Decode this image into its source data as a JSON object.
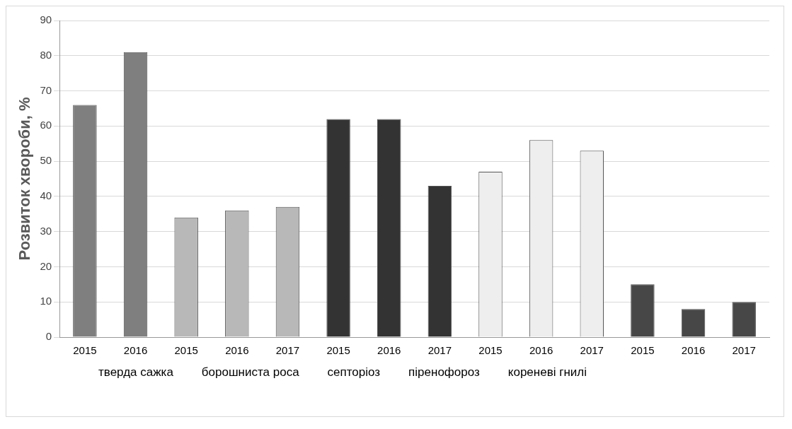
{
  "chart_data": {
    "type": "bar",
    "ylabel": "Розвиток хвороби, %",
    "categories": [
      "2015",
      "2016",
      "2015",
      "2016",
      "2017",
      "2015",
      "2016",
      "2017",
      "2015",
      "2016",
      "2017",
      "2015",
      "2016",
      "2017"
    ],
    "values": [
      66,
      81,
      34,
      36,
      37,
      62,
      62,
      43,
      47,
      56,
      53,
      15,
      8,
      10
    ],
    "colors": [
      "#7f7f7f",
      "#7f7f7f",
      "#b8b8b8",
      "#b8b8b8",
      "#b8b8b8",
      "#333333",
      "#333333",
      "#333333",
      "#eeeeee",
      "#eeeeee",
      "#eeeeee",
      "#474747",
      "#474747",
      "#474747"
    ],
    "ylim": [
      0,
      90
    ],
    "yticks": [
      0,
      10,
      20,
      30,
      40,
      50,
      60,
      70,
      80,
      90
    ],
    "grid": "y",
    "legend": false,
    "annotations": [
      "тверда сажка",
      "борошниста роса",
      "септоріоз",
      "піренофороз",
      "кореневі гнилі"
    ]
  }
}
